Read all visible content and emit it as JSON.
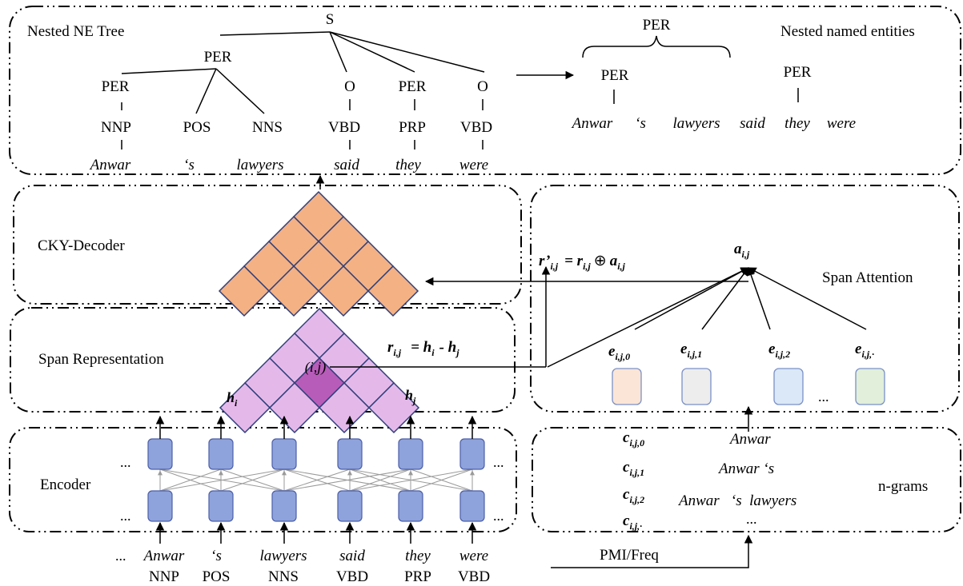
{
  "panels": {
    "nested_tree": "Nested NE Tree",
    "nested_entities": "Nested named entities",
    "cky": "CKY-Decoder",
    "span_rep": "Span Representation",
    "span_att": "Span Attention",
    "encoder": "Encoder",
    "ngrams": "n-grams"
  },
  "tree": {
    "root": "S",
    "per_top": "PER",
    "nodes_row1": [
      "PER",
      "O",
      "PER",
      "O"
    ],
    "pos_row": [
      "NNP",
      "POS",
      "NNS",
      "VBD",
      "PRP",
      "VBD"
    ],
    "words": [
      "Anwar",
      "‘s",
      "lawyers",
      "said",
      "they",
      "were"
    ]
  },
  "entities": {
    "outer": "PER",
    "inner1": "PER",
    "inner2": "PER",
    "sentence": [
      "Anwar",
      "‘s",
      "lawyers",
      "said",
      "they",
      "were"
    ]
  },
  "formulas": {
    "r_prime": "r’",
    "r_prime_sub": "i,j",
    "eq1": "= r",
    "r_sub": "i,j",
    "oplus": "⊕",
    "a": "a",
    "a_sub": "i,j",
    "a_label": "a",
    "a_label_sub": "i,j",
    "r2": "r",
    "r2_sub": "i,j",
    "eq2": "= h",
    "hi_sub": "i",
    "minus": "- h",
    "hj_sub": "j",
    "cell": "(i,j)",
    "h_i": "h",
    "h_i_sub": "i",
    "h_j": "h",
    "h_j_sub": "j"
  },
  "embeddings": [
    {
      "label": "e",
      "sub": "i,j,0",
      "color": "#fbe5d6"
    },
    {
      "label": "e",
      "sub": "i,j,1",
      "color": "#ededed"
    },
    {
      "label": "e",
      "sub": "i,j,2",
      "color": "#dae8f7"
    },
    {
      "label": "e",
      "sub": "i,j,·",
      "color": "#e2efda"
    }
  ],
  "embedding_ellipsis": "...",
  "ngram_rows": [
    {
      "label": "c",
      "sub": "i,j,0",
      "text": "Anwar"
    },
    {
      "label": "c",
      "sub": "i,j,1",
      "text": "Anwar ‘s"
    },
    {
      "label": "c",
      "sub": "i,j,2",
      "text": "Anwar   ‘s  lawyers"
    },
    {
      "label": "c",
      "sub": "i,j,·",
      "text": "..."
    }
  ],
  "encoder_ellipsis": "...",
  "input": {
    "ellipsis": "...",
    "words": [
      "Anwar",
      "‘s",
      "lawyers",
      "said",
      "they",
      "were"
    ],
    "tags": [
      "NNP",
      "POS",
      "NNS",
      "VBD",
      "PRP",
      "VBD"
    ]
  },
  "pmi": "PMI/Freq"
}
